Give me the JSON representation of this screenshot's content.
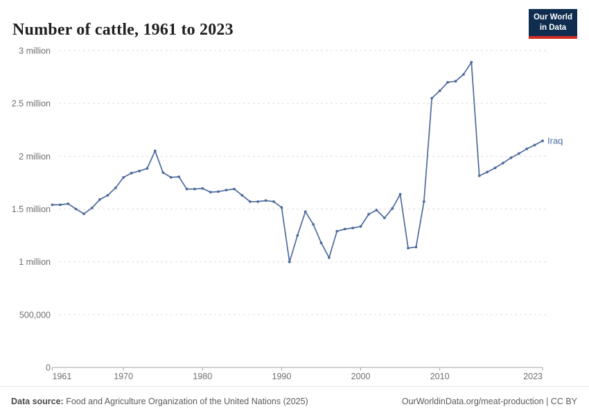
{
  "header": {
    "title": "Number of cattle, 1961 to 2023"
  },
  "logo": {
    "line1": "Our World",
    "line2": "in Data",
    "bg_color": "#102D50",
    "accent_color": "#D42B21"
  },
  "chart_data": {
    "type": "line",
    "title": "Number of cattle, 1961 to 2023",
    "entity_label": "Iraq",
    "line_color": "#4C6A9C",
    "grid": "horizontal dashed",
    "legend_position": "end-of-line label",
    "xlim": [
      1961,
      2023
    ],
    "ylim": [
      0,
      3000000
    ],
    "x_ticks": [
      {
        "value": 1961,
        "label": "1961"
      },
      {
        "value": 1970,
        "label": "1970"
      },
      {
        "value": 1980,
        "label": "1980"
      },
      {
        "value": 1990,
        "label": "1990"
      },
      {
        "value": 2000,
        "label": "2000"
      },
      {
        "value": 2010,
        "label": "2010"
      },
      {
        "value": 2023,
        "label": "2023"
      }
    ],
    "y_ticks": [
      {
        "value": 0,
        "label": "0"
      },
      {
        "value": 500000,
        "label": "500,000"
      },
      {
        "value": 1000000,
        "label": "1 million"
      },
      {
        "value": 1500000,
        "label": "1.5 million"
      },
      {
        "value": 2000000,
        "label": "2 million"
      },
      {
        "value": 2500000,
        "label": "2.5 million"
      },
      {
        "value": 3000000,
        "label": "3 million"
      }
    ],
    "x": [
      1961,
      1962,
      1963,
      1964,
      1965,
      1966,
      1967,
      1968,
      1969,
      1970,
      1971,
      1972,
      1973,
      1974,
      1975,
      1976,
      1977,
      1978,
      1979,
      1980,
      1981,
      1982,
      1983,
      1984,
      1985,
      1986,
      1987,
      1988,
      1989,
      1990,
      1991,
      1992,
      1993,
      1994,
      1995,
      1996,
      1997,
      1998,
      1999,
      2000,
      2001,
      2002,
      2003,
      2004,
      2005,
      2006,
      2007,
      2008,
      2009,
      2010,
      2011,
      2012,
      2013,
      2014,
      2015,
      2016,
      2017,
      2018,
      2019,
      2020,
      2021,
      2022,
      2023
    ],
    "series": [
      {
        "name": "Iraq",
        "values": [
          1540000,
          1540000,
          1550000,
          1500000,
          1455000,
          1510000,
          1590000,
          1630000,
          1700000,
          1800000,
          1840000,
          1860000,
          1885000,
          2050000,
          1845000,
          1800000,
          1805000,
          1690000,
          1690000,
          1695000,
          1660000,
          1665000,
          1680000,
          1690000,
          1630000,
          1570000,
          1570000,
          1580000,
          1570000,
          1515000,
          1000000,
          1250000,
          1475000,
          1355000,
          1180000,
          1040000,
          1290000,
          1310000,
          1320000,
          1335000,
          1450000,
          1490000,
          1415000,
          1505000,
          1640000,
          1130000,
          1140000,
          1570000,
          2550000,
          2620000,
          2700000,
          2710000,
          2775000,
          2890000,
          1815000,
          1850000,
          1890000,
          1935000,
          1985000,
          2025000,
          2070000,
          2105000,
          2145000
        ]
      }
    ]
  },
  "footer": {
    "source_label": "Data source:",
    "source_text": " Food and Agriculture Organization of the United Nations (2025)",
    "link_text": "OurWorldinData.org/meat-production | CC BY"
  }
}
